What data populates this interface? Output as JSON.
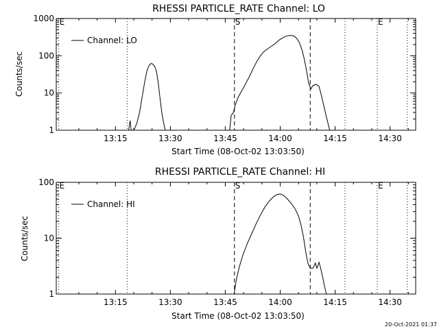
{
  "chart_data": [
    {
      "type": "line",
      "title": "RHESSI PARTICLE_RATE Channel: LO",
      "xlabel": "Start Time (08-Oct-02 13:03:50)",
      "ylabel": "Counts/sec",
      "yscale": "log",
      "ylim": [
        1,
        1000
      ],
      "xlim_minutes": [
        13.83,
        112.0
      ],
      "x_tick_labels": [
        "13:15",
        "13:30",
        "13:45",
        "14:00",
        "14:15",
        "14:30"
      ],
      "x_ticks_minutes": [
        30,
        45,
        60,
        75,
        90,
        105
      ],
      "y_tick_labels": [
        "1",
        "10",
        "100",
        "1000"
      ],
      "y_ticks": [
        1,
        10,
        100,
        1000
      ],
      "legend": {
        "label": "Channel: LO",
        "placement": "top-left"
      },
      "markers": [
        {
          "label": "E",
          "minutes": 14.5,
          "style": "dotted"
        },
        {
          "label": "S",
          "minutes": 62.5,
          "style": "dashed"
        },
        {
          "label": "E",
          "minutes": 101.5,
          "style": "dotted"
        }
      ],
      "extra_lines": [
        {
          "minutes": 33.2,
          "style": "dotted"
        },
        {
          "minutes": 83.2,
          "style": "dashed"
        },
        {
          "minutes": 92.7,
          "style": "dotted"
        },
        {
          "minutes": 109.7,
          "style": "dotted"
        }
      ],
      "series": [
        {
          "segments": [
            [
              [
                33.6,
                1.0
              ],
              [
                34.0,
                1.8
              ],
              [
                34.3,
                1.0
              ]
            ],
            [
              [
                35.0,
                1.0
              ],
              [
                35.8,
                1.5
              ],
              [
                36.6,
                3.0
              ],
              [
                37.3,
                8.0
              ],
              [
                38.0,
                20.0
              ],
              [
                38.6,
                40.0
              ],
              [
                39.2,
                55.0
              ],
              [
                39.7,
                62.0
              ],
              [
                40.2,
                60.0
              ],
              [
                40.7,
                52.0
              ],
              [
                41.2,
                38.0
              ],
              [
                41.7,
                18.0
              ],
              [
                42.2,
                7.0
              ],
              [
                42.7,
                2.8
              ],
              [
                43.2,
                1.5
              ],
              [
                43.6,
                1.0
              ]
            ],
            [
              [
                61.2,
                1.0
              ],
              [
                61.6,
                2.5
              ],
              [
                62.2,
                3.0
              ],
              [
                62.8,
                5.0
              ],
              [
                63.6,
                8.0
              ],
              [
                64.6,
                12.0
              ],
              [
                65.6,
                18.0
              ],
              [
                66.6,
                28.0
              ],
              [
                67.6,
                45.0
              ],
              [
                68.6,
                70.0
              ],
              [
                69.6,
                100.0
              ],
              [
                70.6,
                130.0
              ],
              [
                71.6,
                155.0
              ],
              [
                72.6,
                180.0
              ],
              [
                73.6,
                210.0
              ],
              [
                74.6,
                260.0
              ],
              [
                75.6,
                300.0
              ],
              [
                76.6,
                335.0
              ],
              [
                77.6,
                350.0
              ],
              [
                78.6,
                345.0
              ],
              [
                79.4,
                300.0
              ],
              [
                80.2,
                230.0
              ],
              [
                81.0,
                140.0
              ],
              [
                81.6,
                80.0
              ],
              [
                82.2,
                40.0
              ],
              [
                82.8,
                18.0
              ],
              [
                83.4,
                13.0
              ],
              [
                84.0,
                16.0
              ],
              [
                84.8,
                17.0
              ],
              [
                85.6,
                15.0
              ],
              [
                86.2,
                9.0
              ],
              [
                86.8,
                5.0
              ],
              [
                87.4,
                2.8
              ],
              [
                88.0,
                1.6
              ],
              [
                88.5,
                1.0
              ]
            ]
          ]
        }
      ]
    },
    {
      "type": "line",
      "title": "RHESSI PARTICLE_RATE Channel: HI",
      "xlabel": "Start Time (08-Oct-02 13:03:50)",
      "ylabel": "Counts/sec",
      "yscale": "log",
      "ylim": [
        1,
        100
      ],
      "xlim_minutes": [
        13.83,
        112.0
      ],
      "x_tick_labels": [
        "13:15",
        "13:30",
        "13:45",
        "14:00",
        "14:15",
        "14:30"
      ],
      "x_ticks_minutes": [
        30,
        45,
        60,
        75,
        90,
        105
      ],
      "y_tick_labels": [
        "1",
        "10",
        "100"
      ],
      "y_ticks": [
        1,
        10,
        100
      ],
      "legend": {
        "label": "Channel: HI",
        "placement": "top-left"
      },
      "markers": [
        {
          "label": "E",
          "minutes": 14.5,
          "style": "dotted"
        },
        {
          "label": "S",
          "minutes": 62.5,
          "style": "dashed"
        },
        {
          "label": "E",
          "minutes": 101.5,
          "style": "dotted"
        }
      ],
      "extra_lines": [
        {
          "minutes": 33.2,
          "style": "dotted"
        },
        {
          "minutes": 83.2,
          "style": "dashed"
        },
        {
          "minutes": 92.7,
          "style": "dotted"
        },
        {
          "minutes": 109.7,
          "style": "dotted"
        }
      ],
      "series": [
        {
          "segments": [
            [
              [
                62.4,
                1.0
              ],
              [
                63.0,
                1.8
              ],
              [
                63.8,
                3.0
              ],
              [
                64.8,
                5.0
              ],
              [
                66.0,
                8.0
              ],
              [
                67.2,
                12.0
              ],
              [
                68.4,
                18.0
              ],
              [
                69.6,
                26.0
              ],
              [
                70.8,
                36.0
              ],
              [
                72.0,
                46.0
              ],
              [
                73.0,
                54.0
              ],
              [
                74.0,
                60.0
              ],
              [
                75.0,
                62.0
              ],
              [
                76.0,
                58.0
              ],
              [
                77.0,
                50.0
              ],
              [
                78.0,
                42.0
              ],
              [
                79.0,
                34.0
              ],
              [
                80.0,
                25.0
              ],
              [
                80.8,
                16.0
              ],
              [
                81.4,
                10.0
              ],
              [
                82.0,
                5.5
              ],
              [
                82.6,
                3.5
              ],
              [
                83.2,
                2.9
              ],
              [
                84.0,
                2.9
              ],
              [
                84.6,
                3.6
              ],
              [
                85.0,
                2.9
              ],
              [
                85.6,
                3.7
              ],
              [
                86.0,
                3.0
              ],
              [
                86.6,
                2.0
              ],
              [
                87.2,
                1.3
              ],
              [
                87.6,
                1.0
              ]
            ]
          ]
        }
      ]
    }
  ],
  "footer": {
    "timestamp": "20-Oct-2021 01:37"
  }
}
